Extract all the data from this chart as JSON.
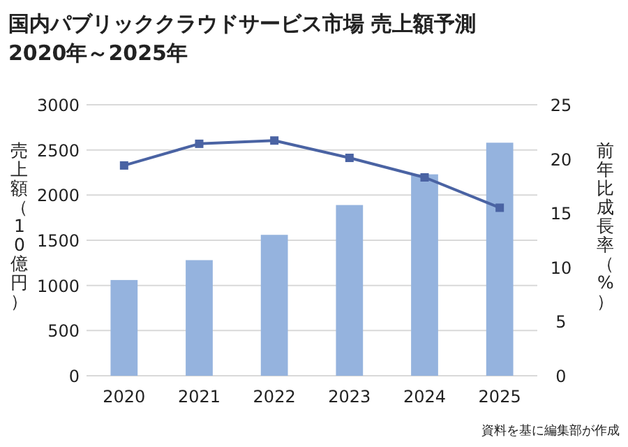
{
  "chart_data": {
    "type": "bar",
    "title": "国内パブリッククラウドサービス市場 売上額予測",
    "subtitle": "2020年～2025年",
    "ylabel": "売上額（10億円）",
    "y2label": "前年比成長率（%）",
    "annotations": [
      "資料を基に編集部が作成"
    ],
    "categories": [
      "2020",
      "2021",
      "2022",
      "2023",
      "2024",
      "2025"
    ],
    "series": [
      {
        "color": "#95b3de",
        "values": [
          1060,
          1280,
          1560,
          1890,
          2230,
          2580
        ]
      },
      {
        "type": "line",
        "axis": "y2",
        "color": "#4a63a3",
        "marker": "square",
        "values": [
          19.4,
          21.4,
          21.7,
          20.1,
          18.3,
          15.5
        ]
      }
    ],
    "ylim": [
      0,
      3000
    ],
    "yticks": [
      0,
      500,
      1000,
      1500,
      2000,
      2500,
      3000
    ],
    "y2lim": [
      0,
      25
    ],
    "y2ticks": [
      0,
      5,
      10,
      15,
      20,
      25
    ],
    "grid": "y"
  }
}
